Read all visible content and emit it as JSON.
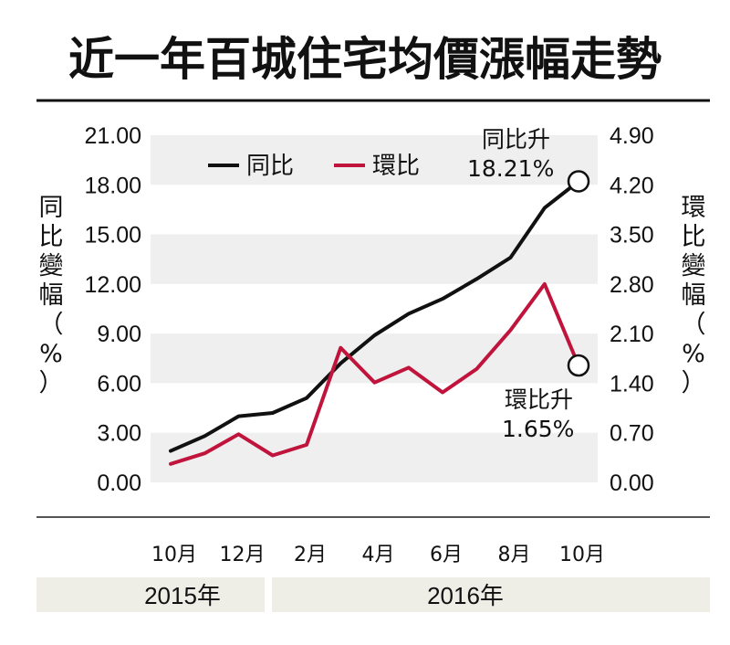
{
  "chart_data": {
    "type": "line",
    "title": "近一年百城住宅均價漲幅走勢",
    "left_axis": {
      "label_chars": [
        "同",
        "比",
        "變",
        "幅",
        "（",
        "%",
        "）"
      ],
      "min": 0,
      "max": 21,
      "step": 3,
      "ticks": [
        "21.00",
        "18.00",
        "15.00",
        "12.00",
        "9.00",
        "6.00",
        "3.00",
        "0.00"
      ]
    },
    "right_axis": {
      "label_chars": [
        "環",
        "比",
        "變",
        "幅",
        "（",
        "%",
        "）"
      ],
      "min": 0,
      "max": 4.9,
      "step": 0.7,
      "ticks": [
        "4.90",
        "4.20",
        "3.50",
        "2.80",
        "2.10",
        "1.40",
        "0.70",
        "0.00"
      ]
    },
    "x_ticks": [
      "10月",
      "12月",
      "2月",
      "4月",
      "6月",
      "8月",
      "10月"
    ],
    "years": [
      "2015年",
      "2016年"
    ],
    "series": [
      {
        "name": "同比",
        "color": "#111111",
        "axis": "left",
        "values": [
          1.9,
          2.8,
          4.0,
          4.2,
          5.1,
          7.2,
          8.9,
          10.2,
          11.1,
          12.3,
          13.6,
          16.6,
          18.21
        ]
      },
      {
        "name": "環比",
        "color": "#c0143c",
        "axis": "right",
        "values": [
          0.26,
          0.41,
          0.68,
          0.38,
          0.53,
          1.9,
          1.41,
          1.62,
          1.27,
          1.6,
          2.15,
          2.8,
          1.65
        ]
      }
    ],
    "annotations": [
      {
        "label": "同比升",
        "value": "18.21%"
      },
      {
        "label": "環比升",
        "value": "1.65%"
      }
    ],
    "grid": "alternating horizontal bands",
    "legend": "top-left"
  }
}
